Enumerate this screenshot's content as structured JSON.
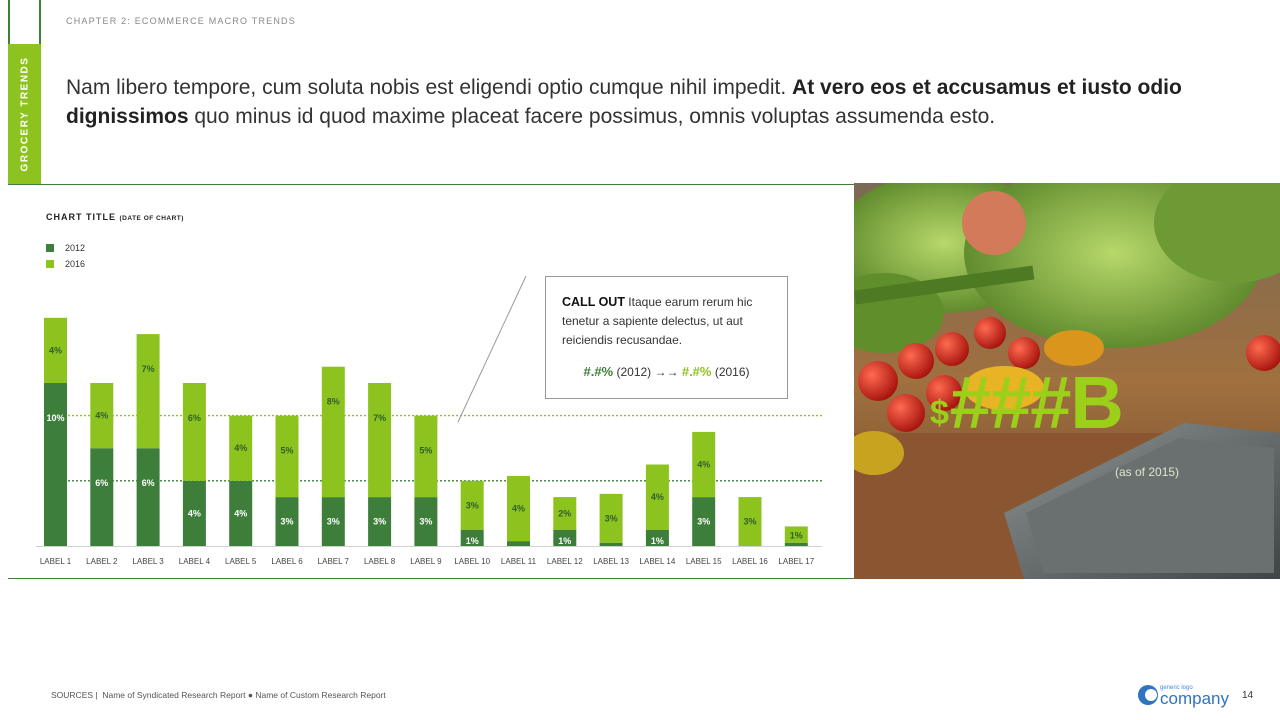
{
  "header": {
    "chapter": "CHAPTER 2: ECOMMERCE MACRO TRENDS",
    "side_tab": "GROCERY TRENDS"
  },
  "headline": {
    "part1": "Nam libero tempore, cum soluta nobis est eligendi optio cumque nihil impedit. ",
    "bold": "At vero eos et accusamus et iusto odio dignissimos",
    "part2": " quo minus id quod maxime placeat facere possimus, omnis voluptas assumenda esto."
  },
  "chart_data": {
    "type": "bar",
    "stacked": true,
    "title": "CHART TITLE",
    "subtitle": "(DATE OF CHART)",
    "categories": [
      "LABEL 1",
      "LABEL 2",
      "LABEL 3",
      "LABEL 4",
      "LABEL 5",
      "LABEL 6",
      "LABEL 7",
      "LABEL 8",
      "LABEL 9",
      "LABEL 10",
      "LABEL 11",
      "LABEL 12",
      "LABEL 13",
      "LABEL 14",
      "LABEL 15",
      "LABEL 16",
      "LABEL 17"
    ],
    "series": [
      {
        "name": "2012",
        "color": "#3d7f3a",
        "values": [
          10,
          6,
          6,
          4,
          4,
          3,
          3,
          3,
          3,
          1,
          0.3,
          1,
          0.2,
          1,
          3,
          0,
          0.2
        ],
        "labels": [
          "10%",
          "6%",
          "6%",
          "4%",
          "4%",
          "3%",
          "3%",
          "3%",
          "3%",
          "1%",
          "",
          "1%",
          "",
          "1%",
          "3%",
          "",
          ""
        ]
      },
      {
        "name": "2016",
        "color": "#8dc31f",
        "values": [
          4,
          4,
          7,
          6,
          4,
          5,
          8,
          7,
          5,
          3,
          4,
          2,
          3,
          4,
          4,
          3,
          1
        ],
        "labels": [
          "4%",
          "4%",
          "7%",
          "6%",
          "4%",
          "5%",
          "8%",
          "7%",
          "5%",
          "3%",
          "4%",
          "2%",
          "3%",
          "4%",
          "4%",
          "3%",
          "1%"
        ]
      }
    ],
    "ylim": [
      0,
      14
    ],
    "reference_lines": [
      8,
      4
    ],
    "legend_position": "top-left"
  },
  "callout": {
    "title": "CALL OUT",
    "body": " Itaque earum rerum hic tenetur a sapiente delectus, ut aut reiciendis recusandae.",
    "value_2012": "#.#%",
    "label_2012": "(2012)",
    "arrow": "→→",
    "value_2016": "#.#%",
    "label_2016": "(2016)"
  },
  "stat": {
    "currency": "$",
    "value": "###B",
    "note": "(as of 2015)"
  },
  "footer": {
    "sources_label": "SOURCES |",
    "sources_text": "Name of Syndicated Research Report  ●  Name of Custom Research Report",
    "page": "14",
    "logo_small": "generic logo",
    "logo_big": "company"
  },
  "colors": {
    "dark_green": "#3d7f3a",
    "light_green": "#8dc31f",
    "stat_green": "#9ccf1a"
  }
}
